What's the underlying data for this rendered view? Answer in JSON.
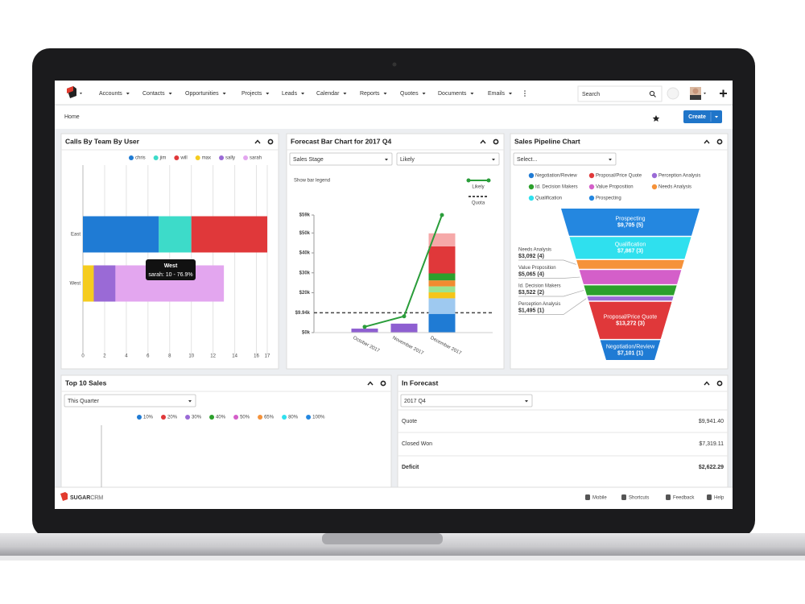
{
  "nav": {
    "items": [
      "Accounts",
      "Contacts",
      "Opportunities",
      "Projects",
      "Leads",
      "Calendar",
      "Reports",
      "Quotes",
      "Documents",
      "Emails"
    ],
    "search_placeholder": "Search"
  },
  "header": {
    "title": "Home",
    "create_button": "Create"
  },
  "dashlets": [
    {
      "title": "Calls By Team By User",
      "chart": {
        "type": "bar",
        "orientation": "horizontal",
        "categories": [
          "East",
          "West"
        ],
        "series": [
          {
            "name": "chris",
            "color": "#1f7bd4",
            "values": [
              7,
              0
            ]
          },
          {
            "name": "jim",
            "color": "#3ddbc9",
            "values": [
              3,
              0
            ]
          },
          {
            "name": "will",
            "color": "#e0383a",
            "values": [
              7,
              0
            ]
          },
          {
            "name": "max",
            "color": "#f5cc1f",
            "values": [
              0,
              1
            ]
          },
          {
            "name": "sally",
            "color": "#9a6ad6",
            "values": [
              0,
              2
            ]
          },
          {
            "name": "sarah",
            "color": "#e3a6ef",
            "values": [
              0,
              10
            ]
          }
        ],
        "xlim": [
          0,
          17
        ],
        "xticks": [
          0,
          2,
          4,
          6,
          8,
          10,
          12,
          14,
          16,
          17
        ],
        "grid": true,
        "tooltip": {
          "title": "West",
          "text": "sarah: 10 - 76.9%"
        }
      }
    },
    {
      "title": "Forecast Bar Chart for 2017 Q4",
      "filters": [
        "Sales Stage",
        "Likely"
      ],
      "chart": {
        "type": "bar",
        "bar_legend_label": "Show bar legend",
        "categories": [
          "October 2017",
          "November 2017",
          "December 2017"
        ],
        "stacks": [
          {
            "colors": [
              "#8e5fd1"
            ],
            "values": [
              2
            ]
          },
          {
            "colors": [
              "#8e5fd1"
            ],
            "values": [
              4.5
            ]
          },
          {
            "colors": [
              "#1f7bd4",
              "#9ec9f0",
              "#f5c518",
              "#9be38f",
              "#f28b30",
              "#2ca02c",
              "#e0383a",
              "#f6a9a9"
            ],
            "values": [
              9.4,
              7.8,
              3,
              3,
              3,
              3.5,
              13.6,
              6.5
            ]
          }
        ],
        "line": {
          "name": "Likely",
          "color": "#2a9d3a",
          "values": [
            2.9,
            8.2,
            59
          ]
        },
        "quota": {
          "name": "Quota",
          "value": 9.94,
          "label": "$9.94k"
        },
        "ylim": [
          0,
          59
        ],
        "yticks": [
          {
            "value": 0,
            "label": "$0k"
          },
          {
            "value": 20,
            "label": "$20k"
          },
          {
            "value": 30,
            "label": "$30k"
          },
          {
            "value": 40,
            "label": "$40k"
          },
          {
            "value": 50,
            "label": "$50k"
          },
          {
            "value": 59,
            "label": "$59k"
          }
        ],
        "grid": false
      }
    },
    {
      "title": "Sales Pipeline Chart",
      "filters": [
        "Select..."
      ],
      "chart": {
        "type": "funnel",
        "stages": [
          {
            "name": "Negotiation/Review",
            "color": "#1f7bd4",
            "value": 7101,
            "value_label": "$7,101 (1)"
          },
          {
            "name": "Proposal/Price Quote",
            "color": "#e0383a",
            "value": 13272,
            "value_label": "$13,272 (3)"
          },
          {
            "name": "Perception Analysis",
            "color": "#9a6ad6",
            "value": 1495,
            "value_label": "$1,495 (1)"
          },
          {
            "name": "Id. Decision Makers",
            "color": "#2ca02c",
            "value": 3522,
            "value_label": "$3,522 (2)"
          },
          {
            "name": "Value Proposition",
            "color": "#d45fc9",
            "value": 5065,
            "value_label": "$5,065 (4)"
          },
          {
            "name": "Needs Analysis",
            "color": "#f5923a",
            "value": 3092,
            "value_label": "$3,092 (4)"
          },
          {
            "name": "Qualification",
            "color": "#2fe0ee",
            "value": 7867,
            "value_label": "$7,867 (3)"
          },
          {
            "name": "Prospecting",
            "color": "#2487e0",
            "value": 9705,
            "value_label": "$9,705 (5)"
          }
        ]
      }
    },
    {
      "title": "Top 10 Sales",
      "filters": [
        "This Quarter"
      ],
      "legend": [
        {
          "name": "10%",
          "color": "#1f7bd4"
        },
        {
          "name": "20%",
          "color": "#e0383a"
        },
        {
          "name": "30%",
          "color": "#9a6ad6"
        },
        {
          "name": "40%",
          "color": "#2ca02c"
        },
        {
          "name": "50%",
          "color": "#d45fc9"
        },
        {
          "name": "65%",
          "color": "#f5923a"
        },
        {
          "name": "80%",
          "color": "#2fe0ee"
        },
        {
          "name": "100%",
          "color": "#2487e0"
        }
      ]
    },
    {
      "title": "In Forecast",
      "filters": [
        "2017 Q4"
      ],
      "rows": [
        {
          "label": "Quote",
          "amount": "$9,941.40"
        },
        {
          "label": "Closed Won",
          "amount": "$7,319.11"
        },
        {
          "label": "Deficit",
          "amount": "$2,622.29"
        }
      ]
    }
  ],
  "footer": {
    "logo": "SUGAR",
    "logo_suffix": "CRM",
    "links": [
      "Mobile",
      "Shortcuts",
      "Feedback",
      "Help"
    ]
  }
}
